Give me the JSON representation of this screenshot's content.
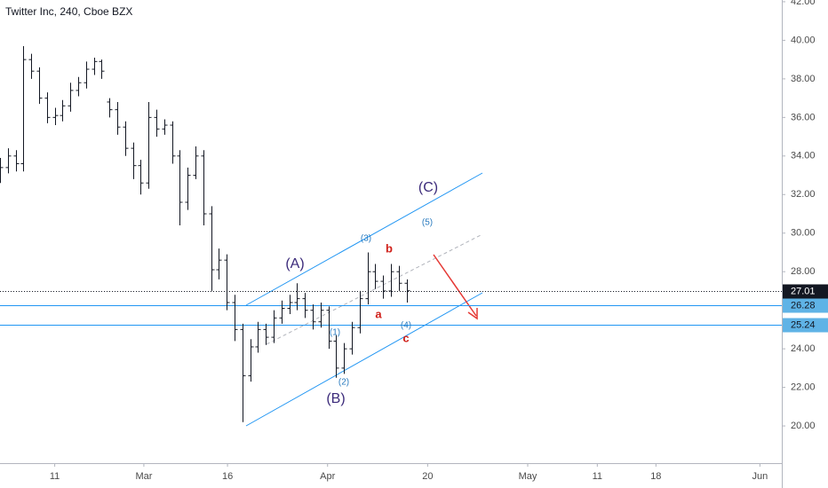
{
  "chart_data": {
    "type": "ohlc",
    "title": "Twitter Inc, 240, Cboe BZX",
    "x": [
      0,
      1,
      2,
      3,
      4,
      5,
      6,
      7,
      8,
      9,
      10,
      11,
      12,
      13,
      14,
      15,
      16,
      17,
      18,
      19,
      20,
      21,
      22,
      23,
      24,
      25,
      26,
      27,
      28,
      29,
      30,
      31,
      32,
      33,
      34,
      35,
      36,
      37,
      38,
      39,
      40,
      41,
      42,
      43,
      44,
      45,
      46,
      47,
      48,
      49,
      50,
      51,
      52
    ],
    "open": [
      32.9,
      33.4,
      34.0,
      33.6,
      39.0,
      38.4,
      37.0,
      36.0,
      36.1,
      36.6,
      37.4,
      37.8,
      38.5,
      38.9,
      36.8,
      36.4,
      35.5,
      34.4,
      33.5,
      32.6,
      36.0,
      35.4,
      35.6,
      34.0,
      31.6,
      33.0,
      34.0,
      31.0,
      28.1,
      28.6,
      26.4,
      25.0,
      22.6,
      24.1,
      25.0,
      24.6,
      25.6,
      26.1,
      26.4,
      26.6,
      26.0,
      25.4,
      26.0,
      24.4,
      23.0,
      24.0,
      25.1,
      26.6,
      28.0,
      27.5,
      27.0,
      28.0,
      27.4
    ],
    "high": [
      33.9,
      34.4,
      34.3,
      39.7,
      39.3,
      38.6,
      37.3,
      36.5,
      36.9,
      37.8,
      38.1,
      38.9,
      39.1,
      39.0,
      37.0,
      36.8,
      35.8,
      34.7,
      33.8,
      36.8,
      36.4,
      35.9,
      35.8,
      34.3,
      33.4,
      34.5,
      34.3,
      31.4,
      29.2,
      28.9,
      26.8,
      25.3,
      24.5,
      25.4,
      25.3,
      26.0,
      26.5,
      26.8,
      27.4,
      26.9,
      26.3,
      26.4,
      26.2,
      24.7,
      24.3,
      25.4,
      27.0,
      29.0,
      28.4,
      27.8,
      28.4,
      28.3,
      27.6
    ],
    "low": [
      32.6,
      33.1,
      33.2,
      33.2,
      38.0,
      36.7,
      35.7,
      35.6,
      35.8,
      36.3,
      37.1,
      37.5,
      38.2,
      38.0,
      36.0,
      35.1,
      34.0,
      32.8,
      32.0,
      32.3,
      35.0,
      35.1,
      33.6,
      30.4,
      31.2,
      32.8,
      30.4,
      27.0,
      27.6,
      26.0,
      24.4,
      20.2,
      22.3,
      23.8,
      24.2,
      24.3,
      25.3,
      25.8,
      26.0,
      25.6,
      25.0,
      25.1,
      24.0,
      22.5,
      22.7,
      23.7,
      24.8,
      26.3,
      27.1,
      26.6,
      26.7,
      27.0,
      26.4
    ],
    "close": [
      33.4,
      34.0,
      33.6,
      39.0,
      38.4,
      37.0,
      36.0,
      36.1,
      36.6,
      37.4,
      37.8,
      38.5,
      38.9,
      38.4,
      36.4,
      35.5,
      34.4,
      33.5,
      32.6,
      36.0,
      35.4,
      35.6,
      34.0,
      31.6,
      33.0,
      34.0,
      31.0,
      28.1,
      28.6,
      26.4,
      25.0,
      22.6,
      24.1,
      25.0,
      24.6,
      25.6,
      26.1,
      26.4,
      26.6,
      26.0,
      25.4,
      26.0,
      24.4,
      23.0,
      24.0,
      25.1,
      26.6,
      28.0,
      27.5,
      27.0,
      28.0,
      27.4,
      27.01
    ],
    "color": "#131722",
    "xlim": [
      0,
      100
    ],
    "xticks": [
      {
        "value": 7.0,
        "label": "11"
      },
      {
        "value": 18.4,
        "label": "Mar"
      },
      {
        "value": 29.1,
        "label": "16"
      },
      {
        "value": 41.9,
        "label": "Apr"
      },
      {
        "value": 54.7,
        "label": "20"
      },
      {
        "value": 67.5,
        "label": "May"
      },
      {
        "value": 76.4,
        "label": "11"
      },
      {
        "value": 83.9,
        "label": "18"
      },
      {
        "value": 97.2,
        "label": "Jun"
      }
    ],
    "ylim": [
      18.07,
      42.09
    ],
    "yticks": [
      {
        "value": 20,
        "label": "20.00"
      },
      {
        "value": 22,
        "label": "22.00"
      },
      {
        "value": 24,
        "label": "24.00"
      },
      {
        "value": 26,
        "label": "26.00"
      },
      {
        "value": 28,
        "label": "28.00"
      },
      {
        "value": 30,
        "label": "30.00"
      },
      {
        "value": 32,
        "label": "32.00"
      },
      {
        "value": 34,
        "label": "34.00"
      },
      {
        "value": 36,
        "label": "36.00"
      },
      {
        "value": 38,
        "label": "38.00"
      },
      {
        "value": 40,
        "label": "40.00"
      },
      {
        "value": 42,
        "label": "42.00"
      }
    ],
    "price_lines": [
      27.01,
      26.28,
      25.24
    ],
    "annotations": [
      "(A)",
      "(B)",
      "(C)",
      "(1)",
      "(2)",
      "(3)",
      "(4)",
      "(5)",
      "a",
      "b",
      "c"
    ]
  }
}
